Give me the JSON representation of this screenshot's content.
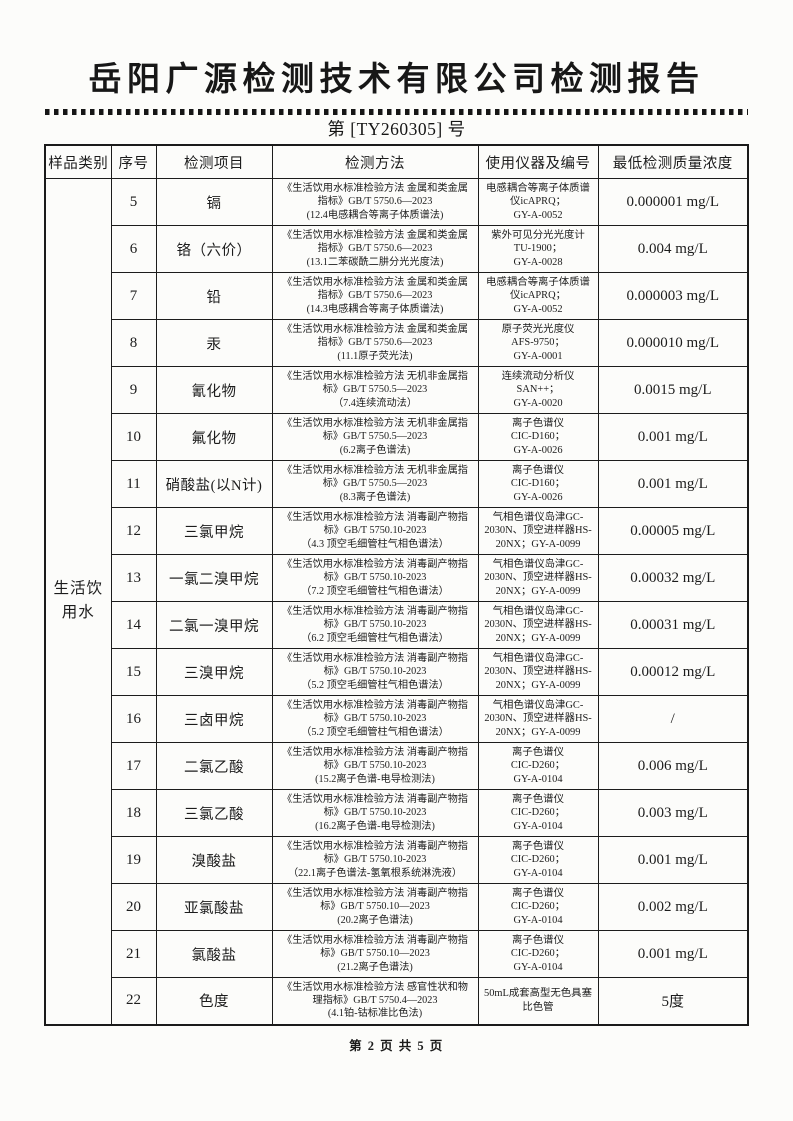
{
  "page": {
    "title": "岳阳广源检测技术有限公司检测报告",
    "report_number": "第 [TY260305] 号",
    "footer": "第 2 页  共 5 页"
  },
  "table": {
    "headers": [
      "样品类别",
      "序号",
      "检测项目",
      "检测方法",
      "使用仪器及编号",
      "最低检测质量浓度"
    ],
    "sample_category": "生活饮用水",
    "rows": [
      {
        "no": "5",
        "item": "镉",
        "method": "《生活饮用水标准检验方法 金属和类金属\n指标》GB/T 5750.6—2023\n(12.4电感耦合等离子体质谱法)",
        "instrument": "电感耦合等离子体质谱\n仪icAPRQ；\nGY-A-0052",
        "limit": "0.000001 mg/L"
      },
      {
        "no": "6",
        "item": "铬（六价）",
        "method": "《生活饮用水标准检验方法 金属和类金属\n指标》GB/T 5750.6—2023\n(13.1二苯碳酰二肼分光光度法)",
        "instrument": "紫外可见分光光度计\nTU-1900；\nGY-A-0028",
        "limit": "0.004 mg/L"
      },
      {
        "no": "7",
        "item": "铅",
        "method": "《生活饮用水标准检验方法 金属和类金属\n指标》GB/T 5750.6—2023\n(14.3电感耦合等离子体质谱法)",
        "instrument": "电感耦合等离子体质谱\n仪icAPRQ；\nGY-A-0052",
        "limit": "0.000003 mg/L"
      },
      {
        "no": "8",
        "item": "汞",
        "method": "《生活饮用水标准检验方法 金属和类金属\n指标》GB/T 5750.6—2023\n(11.1原子荧光法)",
        "instrument": "原子荧光光度仪\nAFS-9750；\nGY-A-0001",
        "limit": "0.000010 mg/L"
      },
      {
        "no": "9",
        "item": "氰化物",
        "method": "《生活饮用水标准检验方法 无机非金属指\n标》GB/T 5750.5—2023\n（7.4连续流动法）",
        "instrument": "连续流动分析仪\nSAN++；\nGY-A-0020",
        "limit": "0.0015 mg/L"
      },
      {
        "no": "10",
        "item": "氟化物",
        "method": "《生活饮用水标准检验方法 无机非金属指\n标》GB/T 5750.5—2023\n(6.2离子色谱法)",
        "instrument": "离子色谱仪\nCIC-D160；\nGY-A-0026",
        "limit": "0.001 mg/L"
      },
      {
        "no": "11",
        "item": "硝酸盐(以N计)",
        "method": "《生活饮用水标准检验方法 无机非金属指\n标》GB/T 5750.5—2023\n(8.3离子色谱法)",
        "instrument": "离子色谱仪\nCIC-D160；\nGY-A-0026",
        "limit": "0.001 mg/L"
      },
      {
        "no": "12",
        "item": "三氯甲烷",
        "method": "《生活饮用水标准检验方法 消毒副产物指\n标》GB/T 5750.10-2023\n（4.3 顶空毛细管柱气相色谱法）",
        "instrument": "气相色谱仪岛津GC-\n2030N、顶空进样器HS-\n20NX；GY-A-0099",
        "limit": "0.00005 mg/L"
      },
      {
        "no": "13",
        "item": "一氯二溴甲烷",
        "method": "《生活饮用水标准检验方法 消毒副产物指\n标》GB/T 5750.10-2023\n（7.2 顶空毛细管柱气相色谱法）",
        "instrument": "气相色谱仪岛津GC-\n2030N、顶空进样器HS-\n20NX；GY-A-0099",
        "limit": "0.00032 mg/L"
      },
      {
        "no": "14",
        "item": "二氯一溴甲烷",
        "method": "《生活饮用水标准检验方法 消毒副产物指\n标》GB/T 5750.10-2023\n（6.2 顶空毛细管柱气相色谱法）",
        "instrument": "气相色谱仪岛津GC-\n2030N、顶空进样器HS-\n20NX；GY-A-0099",
        "limit": "0.00031 mg/L"
      },
      {
        "no": "15",
        "item": "三溴甲烷",
        "method": "《生活饮用水标准检验方法 消毒副产物指\n标》GB/T 5750.10-2023\n（5.2 顶空毛细管柱气相色谱法）",
        "instrument": "气相色谱仪岛津GC-\n2030N、顶空进样器HS-\n20NX；GY-A-0099",
        "limit": "0.00012 mg/L"
      },
      {
        "no": "16",
        "item": "三卤甲烷",
        "method": "《生活饮用水标准检验方法 消毒副产物指\n标》GB/T 5750.10-2023\n（5.2 顶空毛细管柱气相色谱法）",
        "instrument": "气相色谱仪岛津GC-\n2030N、顶空进样器HS-\n20NX；GY-A-0099",
        "limit": "/"
      },
      {
        "no": "17",
        "item": "二氯乙酸",
        "method": "《生活饮用水标准检验方法 消毒副产物指\n标》GB/T 5750.10-2023\n(15.2离子色谱-电导检测法)",
        "instrument": "离子色谱仪\nCIC-D260；\nGY-A-0104",
        "limit": "0.006 mg/L"
      },
      {
        "no": "18",
        "item": "三氯乙酸",
        "method": "《生活饮用水标准检验方法 消毒副产物指\n标》GB/T 5750.10-2023\n(16.2离子色谱-电导检测法)",
        "instrument": "离子色谱仪\nCIC-D260；\nGY-A-0104",
        "limit": "0.003 mg/L"
      },
      {
        "no": "19",
        "item": "溴酸盐",
        "method": "《生活饮用水标准检验方法 消毒副产物指\n标》GB/T 5750.10-2023\n（22.1离子色谱法-氢氧根系统淋洗液）",
        "instrument": "离子色谱仪\nCIC-D260；\nGY-A-0104",
        "limit": "0.001 mg/L"
      },
      {
        "no": "20",
        "item": "亚氯酸盐",
        "method": "《生活饮用水标准检验方法 消毒副产物指\n标》GB/T 5750.10—2023\n(20.2离子色谱法)",
        "instrument": "离子色谱仪\nCIC-D260；\nGY-A-0104",
        "limit": "0.002 mg/L"
      },
      {
        "no": "21",
        "item": "氯酸盐",
        "method": "《生活饮用水标准检验方法 消毒副产物指\n标》GB/T 5750.10—2023\n(21.2离子色谱法)",
        "instrument": "离子色谱仪\nCIC-D260；\nGY-A-0104",
        "limit": "0.001 mg/L"
      },
      {
        "no": "22",
        "item": "色度",
        "method": "《生活饮用水标准检验方法 感官性状和物\n理指标》GB/T 5750.4—2023\n(4.1铂-钴标准比色法)",
        "instrument": "50mL成套高型无色具塞\n比色管",
        "limit": "5度"
      }
    ]
  }
}
